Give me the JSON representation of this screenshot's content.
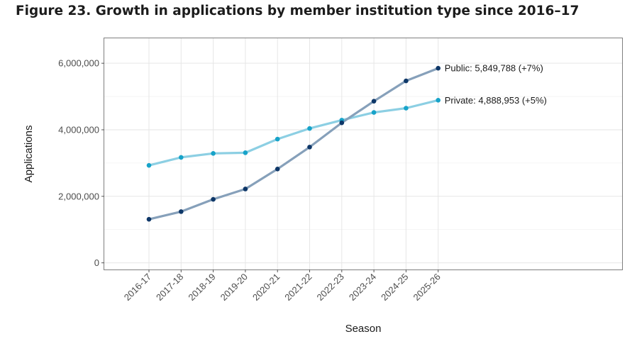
{
  "title": "Figure 23. Growth in applications by member institution type since 2016–17",
  "chart_data": {
    "type": "line",
    "title": "Figure 23. Growth in applications by member institution type since 2016–17",
    "xlabel": "Season",
    "ylabel": "Applications",
    "categories": [
      "2016-17",
      "2017-18",
      "2018-19",
      "2019-20",
      "2020-21",
      "2021-22",
      "2022-23",
      "2023-24",
      "2024-25",
      "2025-26"
    ],
    "y_ticks": [
      0,
      2000000,
      4000000,
      6000000
    ],
    "y_tick_labels": [
      "0",
      "2,000,000",
      "4,000,000",
      "6,000,000"
    ],
    "ylim": [
      -200000,
      6750000
    ],
    "grid": true,
    "series": [
      {
        "key": "private",
        "values": [
          2930000,
          3170000,
          3290000,
          3310000,
          3720000,
          4040000,
          4290000,
          4520000,
          4650000,
          4888953
        ],
        "line_color": "#8ccfe3",
        "point_color": "#17a3c9",
        "label": "Private: 4,888,953 (+5%)"
      },
      {
        "key": "public",
        "values": [
          1310000,
          1540000,
          1910000,
          2220000,
          2820000,
          3480000,
          4210000,
          4860000,
          5470000,
          5849788
        ],
        "line_color": "#86a0ba",
        "point_color": "#0e3768",
        "label": "Public: 5,849,788 (+7%)"
      }
    ]
  }
}
